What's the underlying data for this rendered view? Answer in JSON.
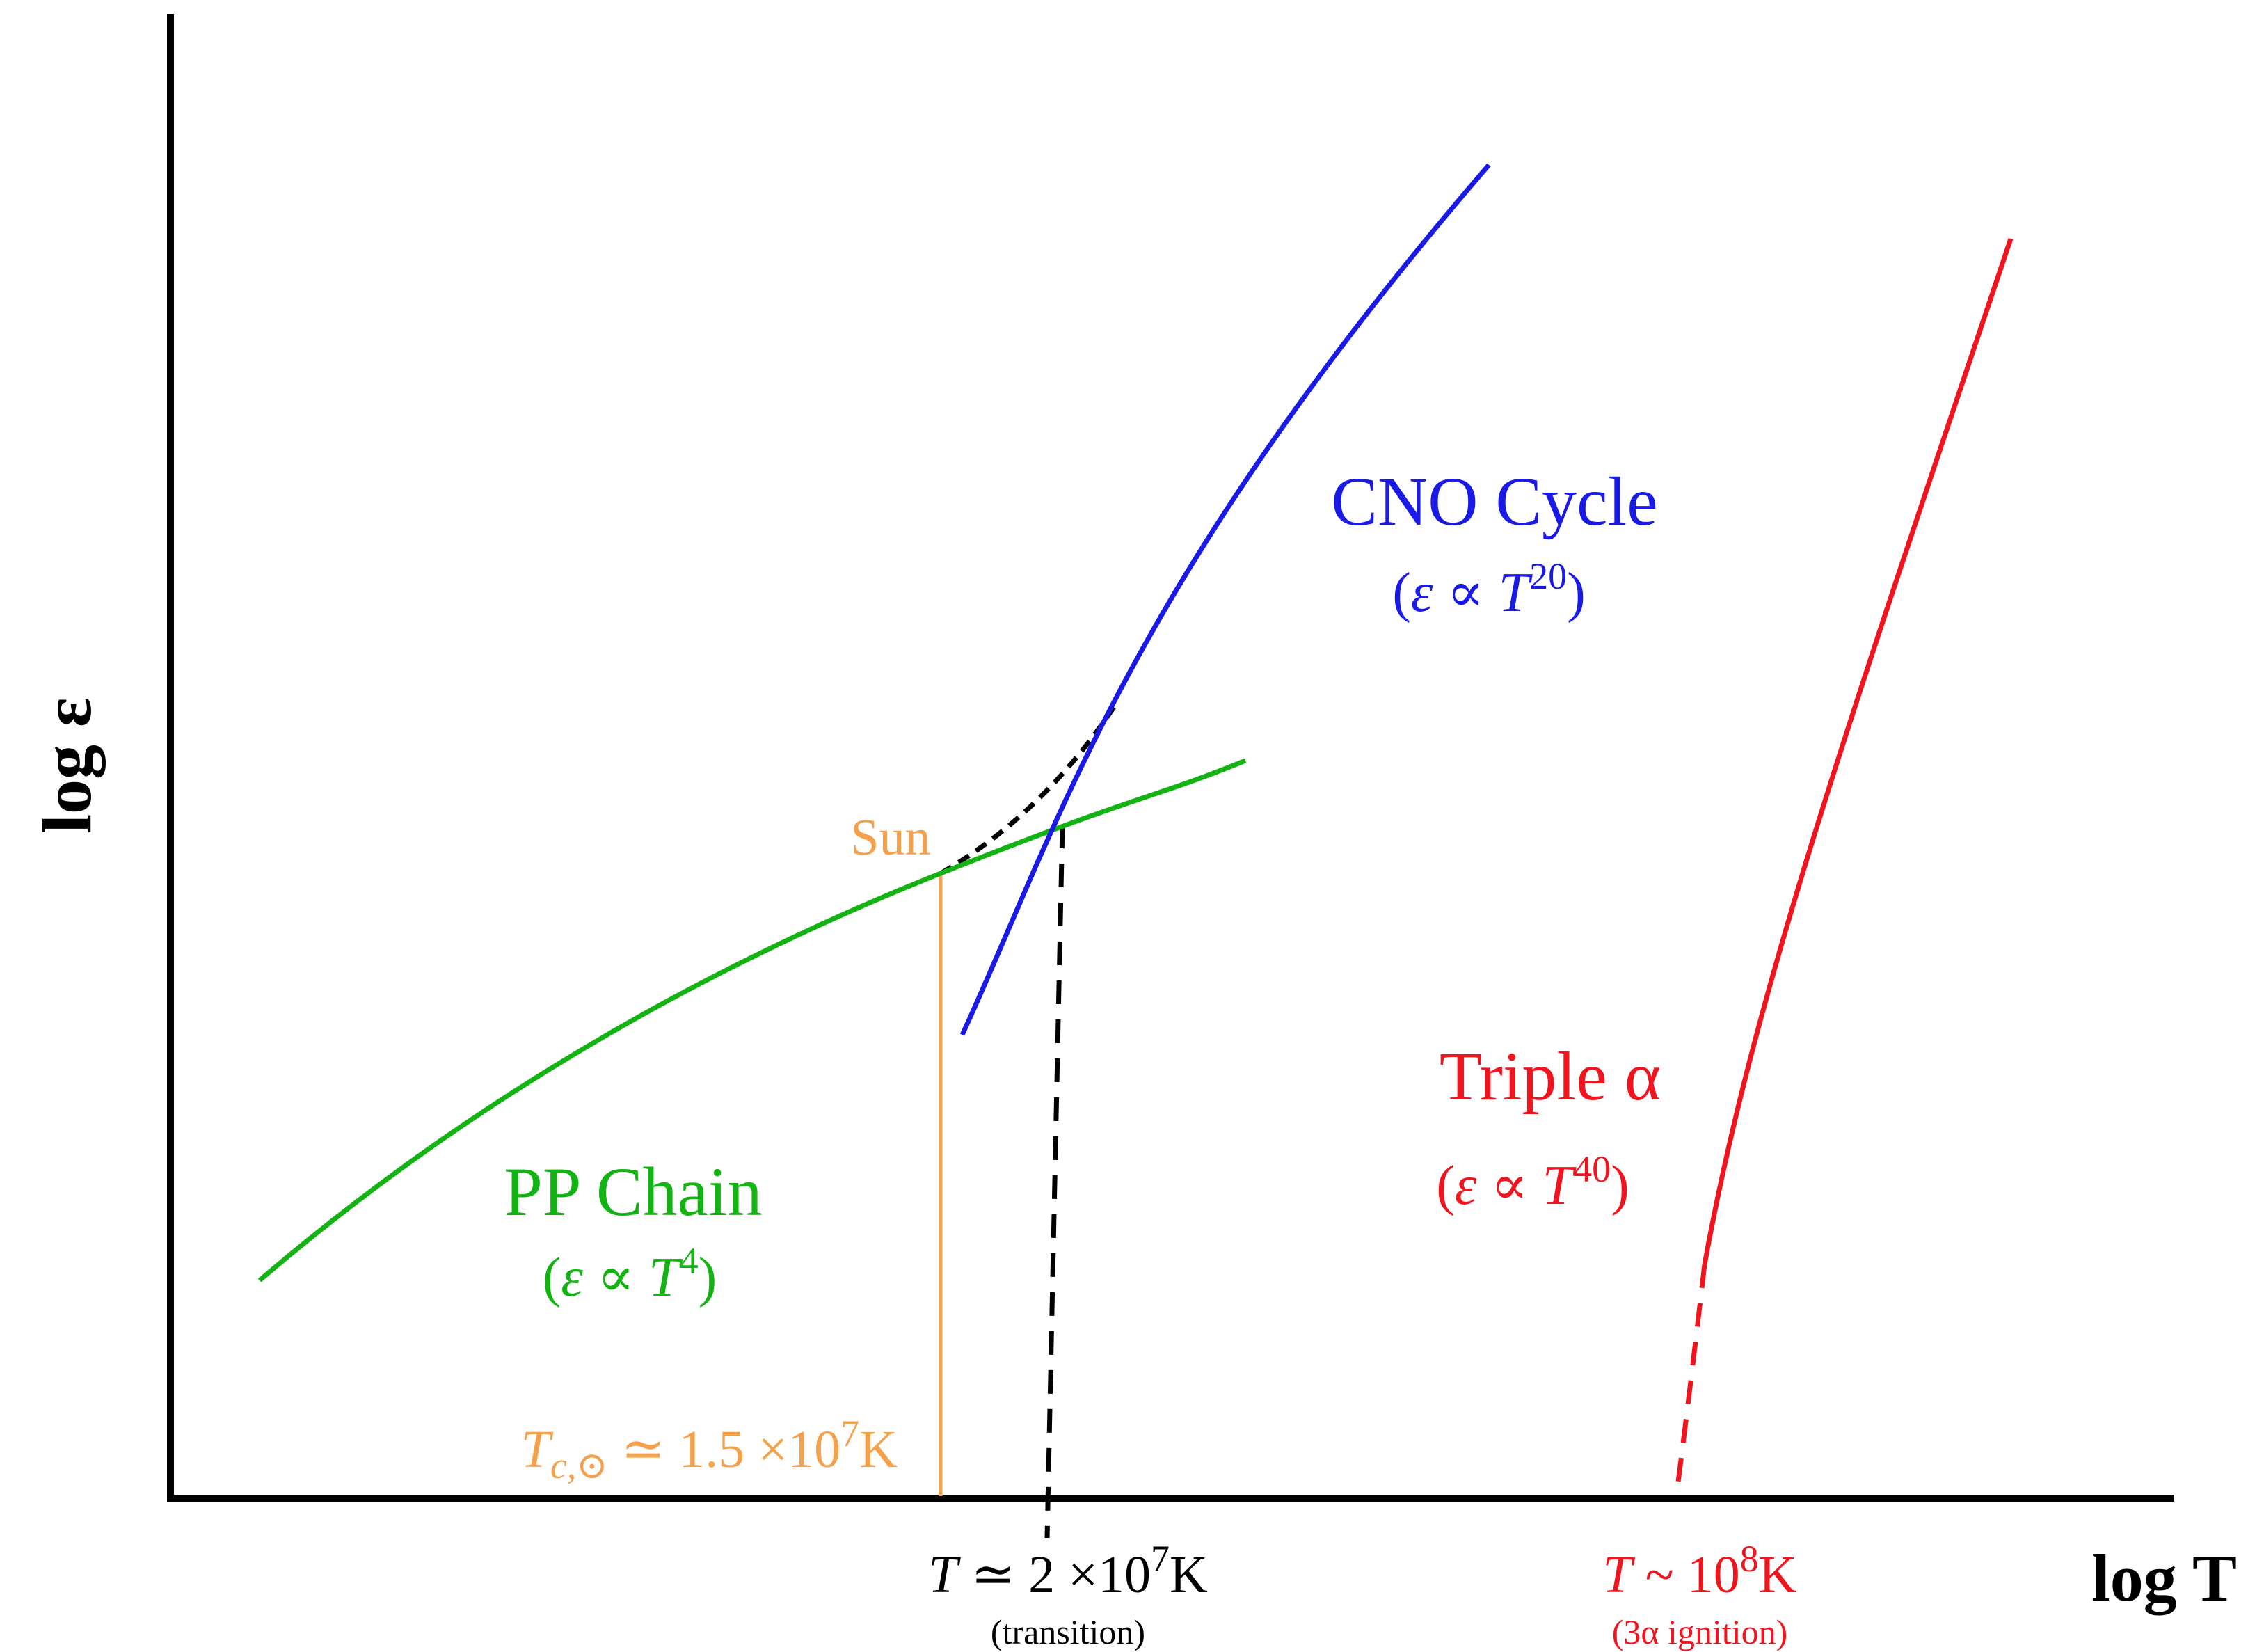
{
  "axes": {
    "y_label": "log ε",
    "x_label": "log T"
  },
  "colors": {
    "axis": "#000000",
    "pp": "#12b312",
    "cno": "#1a1ae6",
    "triple": "#f0141e",
    "sun": "#f5a04a"
  },
  "curves": {
    "pp": {
      "name": "PP Chain",
      "base": "ε ∝ T",
      "exp": "4"
    },
    "cno": {
      "name": "CNO Cycle",
      "base": "ε ∝ T",
      "exp": "20"
    },
    "triple": {
      "name": "Triple α",
      "base": "ε ∝ T",
      "exp": "40"
    }
  },
  "sun": {
    "label": "Sun",
    "temp_sym": "T",
    "temp_sub": "c,⊙",
    "temp_rel": " ≃ 1.5 ×10",
    "temp_exp": "7",
    "temp_unit": "K"
  },
  "transition": {
    "temp_sym": "T",
    "temp_rel": " ≃ 2 ×10",
    "temp_exp": "7",
    "temp_unit": "K",
    "note": "(transition)"
  },
  "ignition": {
    "temp_sym": "T",
    "temp_rel": " ~ 10",
    "temp_exp": "8",
    "temp_unit": "K",
    "note": "(3α ignition)"
  }
}
